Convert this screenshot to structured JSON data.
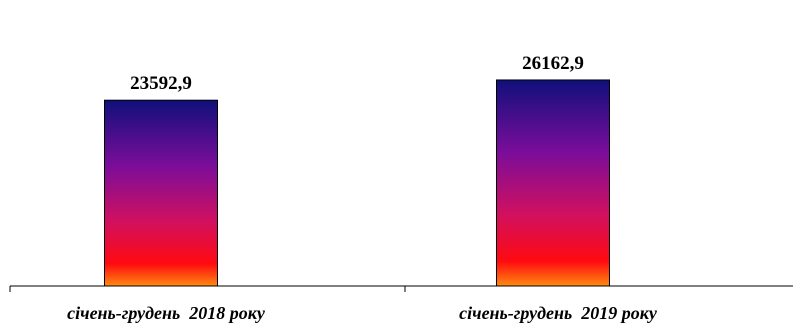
{
  "chart_data": {
    "type": "bar",
    "categories": [
      "січень-грудень  2018 року",
      "січень-грудень  2019 року"
    ],
    "values": [
      23592.9,
      26162.9
    ],
    "value_labels": [
      "23592,9",
      "26162,9"
    ],
    "title": "",
    "xlabel": "",
    "ylabel": "",
    "grid": false,
    "legend": "none",
    "bar_gradient": [
      "#10107a",
      "#7a0d9a",
      "#d01060",
      "#ff0a10",
      "#ff8a10"
    ],
    "bar_stroke": "#000000"
  }
}
